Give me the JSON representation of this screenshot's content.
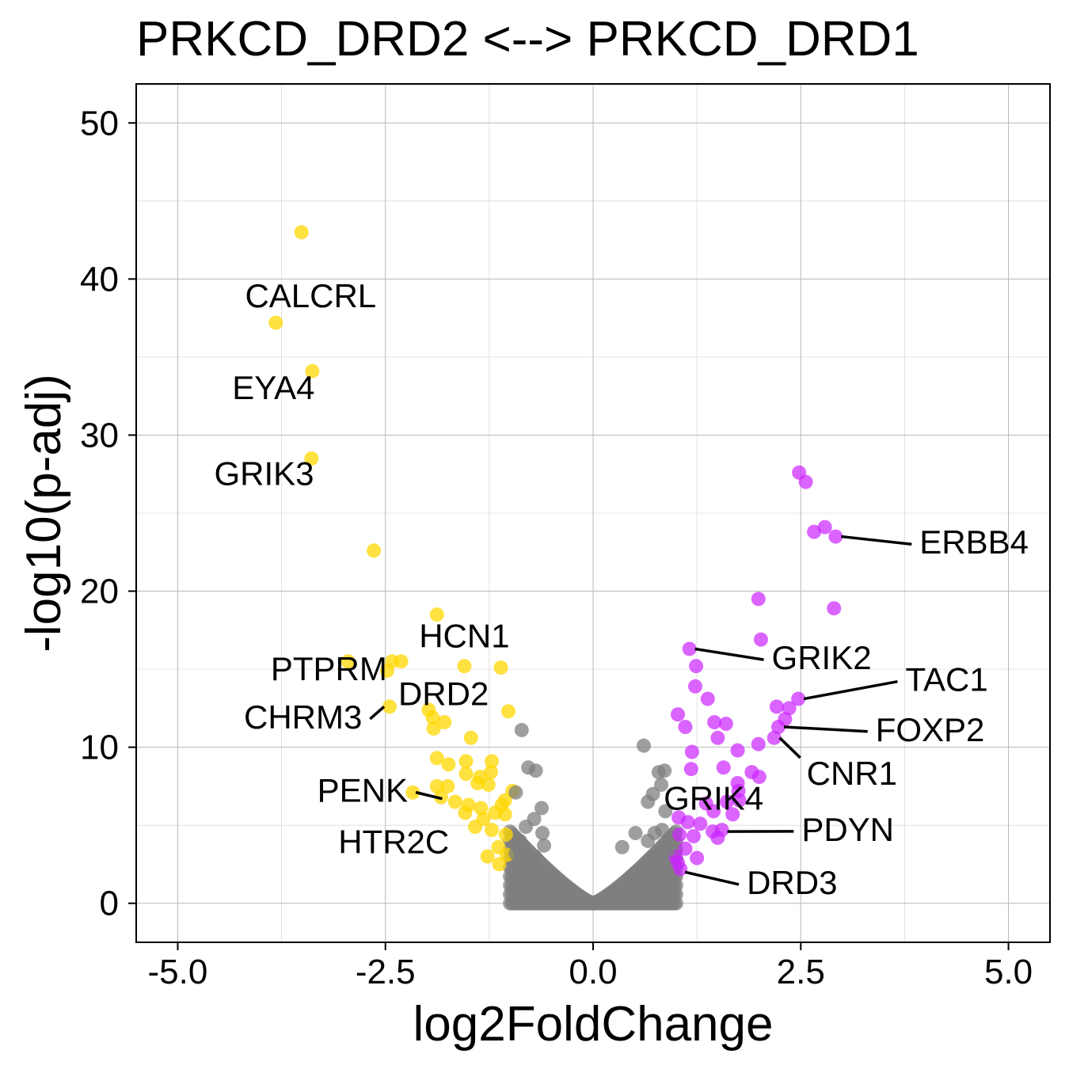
{
  "chart_data": {
    "type": "scatter",
    "title": "PRKCD_DRD2 <--> PRKCD_DRD1",
    "xlabel": "log2FoldChange",
    "ylabel": "-log10(p-adj)",
    "xlim": [
      -5.5,
      5.5
    ],
    "ylim": [
      -2.5,
      52.5
    ],
    "x_ticks": [
      -5,
      -2.5,
      0,
      2.5,
      5
    ],
    "x_tick_labels": [
      "-5.0",
      "-2.5",
      "0.0",
      "2.5",
      "5.0"
    ],
    "y_ticks": [
      0,
      10,
      20,
      30,
      40,
      50
    ],
    "y_tick_labels": [
      "0",
      "10",
      "20",
      "30",
      "40",
      "50"
    ],
    "grid": true,
    "colors": {
      "down": "#FFD700",
      "up": "#CC22FF",
      "ns": "#7F7F7F"
    },
    "series": [
      {
        "group": "down",
        "points": [
          [
            -3.51,
            43.0
          ],
          [
            -3.82,
            37.2
          ],
          [
            -3.38,
            34.1
          ],
          [
            -3.39,
            28.5
          ],
          [
            -2.64,
            22.6
          ],
          [
            -1.88,
            18.5
          ],
          [
            -2.95,
            15.5
          ],
          [
            -2.42,
            15.5
          ],
          [
            -2.31,
            15.5
          ],
          [
            -2.48,
            14.9
          ],
          [
            -1.55,
            15.2
          ],
          [
            -1.11,
            15.1
          ],
          [
            -2.45,
            12.6
          ],
          [
            -1.98,
            12.4
          ],
          [
            -1.02,
            12.3
          ],
          [
            -1.93,
            11.9
          ],
          [
            -1.79,
            11.6
          ],
          [
            -1.92,
            11.2
          ],
          [
            -1.47,
            10.6
          ],
          [
            -1.88,
            9.3
          ],
          [
            -1.74,
            8.9
          ],
          [
            -1.53,
            9.1
          ],
          [
            -1.22,
            9.1
          ],
          [
            -1.53,
            8.3
          ],
          [
            -1.23,
            8.4
          ],
          [
            -1.36,
            8.1
          ],
          [
            -2.17,
            7.1
          ],
          [
            -1.88,
            7.5
          ],
          [
            -1.75,
            7.5
          ],
          [
            -1.39,
            7.7
          ],
          [
            -1.26,
            7.6
          ],
          [
            -1.83,
            6.8
          ],
          [
            -1.66,
            6.5
          ],
          [
            -1.5,
            6.3
          ],
          [
            -1.35,
            6.1
          ],
          [
            -1.1,
            6.3
          ],
          [
            -1.54,
            5.8
          ],
          [
            -1.32,
            5.4
          ],
          [
            -1.18,
            5.8
          ],
          [
            -1.06,
            5.7
          ],
          [
            -1.42,
            4.9
          ],
          [
            -1.22,
            4.7
          ],
          [
            -1.05,
            4.4
          ],
          [
            -1.14,
            3.6
          ],
          [
            -1.27,
            3.0
          ],
          [
            -1.13,
            2.5
          ],
          [
            -1.04,
            3.1
          ],
          [
            -0.97,
            7.2
          ],
          [
            -1.06,
            6.6
          ]
        ]
      },
      {
        "group": "up",
        "points": [
          [
            2.48,
            27.6
          ],
          [
            2.56,
            27.0
          ],
          [
            2.92,
            23.5
          ],
          [
            2.66,
            23.8
          ],
          [
            2.79,
            24.1
          ],
          [
            2.9,
            18.9
          ],
          [
            1.99,
            19.5
          ],
          [
            2.02,
            16.9
          ],
          [
            1.16,
            16.3
          ],
          [
            1.24,
            15.2
          ],
          [
            1.23,
            13.9
          ],
          [
            1.38,
            13.1
          ],
          [
            2.47,
            13.1
          ],
          [
            2.36,
            12.5
          ],
          [
            2.21,
            12.6
          ],
          [
            2.31,
            11.8
          ],
          [
            1.02,
            12.1
          ],
          [
            1.11,
            11.3
          ],
          [
            1.46,
            11.6
          ],
          [
            1.6,
            11.5
          ],
          [
            2.23,
            11.3
          ],
          [
            1.5,
            10.6
          ],
          [
            2.18,
            10.6
          ],
          [
            1.99,
            10.2
          ],
          [
            1.19,
            9.7
          ],
          [
            1.74,
            9.8
          ],
          [
            1.18,
            8.6
          ],
          [
            1.57,
            8.7
          ],
          [
            1.91,
            8.4
          ],
          [
            2.0,
            8.1
          ],
          [
            1.74,
            7.7
          ],
          [
            1.75,
            7.2
          ],
          [
            1.76,
            6.6
          ],
          [
            1.61,
            6.5
          ],
          [
            1.36,
            6.4
          ],
          [
            1.45,
            5.9
          ],
          [
            1.68,
            5.7
          ],
          [
            1.03,
            5.5
          ],
          [
            1.14,
            5.2
          ],
          [
            1.29,
            5.1
          ],
          [
            1.44,
            4.6
          ],
          [
            1.5,
            4.2
          ],
          [
            1.55,
            4.7
          ],
          [
            1.04,
            4.4
          ],
          [
            1.21,
            4.3
          ],
          [
            1.11,
            3.5
          ],
          [
            1.25,
            2.9
          ],
          [
            1.05,
            2.2
          ],
          [
            1.02,
            2.6
          ],
          [
            0.99,
            3.0
          ]
        ]
      },
      {
        "group": "ns",
        "points": [
          [
            -0.86,
            11.1
          ],
          [
            -0.78,
            8.7
          ],
          [
            -0.69,
            8.5
          ],
          [
            -0.93,
            7.1
          ],
          [
            -0.62,
            6.1
          ],
          [
            -0.71,
            5.4
          ],
          [
            -0.81,
            4.9
          ],
          [
            -0.88,
            4.0
          ],
          [
            -0.61,
            4.5
          ],
          [
            -0.59,
            3.7
          ],
          [
            -0.93,
            3.2
          ],
          [
            -0.7,
            3.0
          ],
          [
            0.61,
            10.1
          ],
          [
            0.79,
            8.4
          ],
          [
            0.86,
            8.5
          ],
          [
            0.82,
            7.6
          ],
          [
            0.72,
            7.0
          ],
          [
            0.66,
            6.5
          ],
          [
            0.87,
            5.9
          ],
          [
            0.51,
            4.5
          ],
          [
            0.74,
            4.5
          ],
          [
            0.66,
            4.0
          ],
          [
            0.35,
            3.6
          ],
          [
            0.83,
            4.7
          ],
          [
            0.9,
            3.4
          ]
        ]
      }
    ],
    "annotations": [
      {
        "label": "CALCRL",
        "x": -3.82,
        "y": 37.2
      },
      {
        "label": "EYA4",
        "x": -3.38,
        "y": 34.1
      },
      {
        "label": "GRIK3",
        "x": -3.39,
        "y": 28.5
      },
      {
        "label": "HCN1",
        "x": -1.55,
        "y": 15.2
      },
      {
        "label": "PTPRM",
        "x": -2.48,
        "y": 14.9
      },
      {
        "label": "DRD2",
        "x": -1.93,
        "y": 11.9
      },
      {
        "label": "CHRM3",
        "x": -2.45,
        "y": 12.6
      },
      {
        "label": "PENK",
        "x": -1.75,
        "y": 6.7
      },
      {
        "label": "HTR2C",
        "x": -1.27,
        "y": 3.0
      },
      {
        "label": "GRIK4",
        "x": 1.04,
        "y": 5.2
      },
      {
        "label": "ERBB4",
        "x": 2.92,
        "y": 23.5
      },
      {
        "label": "GRIK2",
        "x": 1.16,
        "y": 16.3
      },
      {
        "label": "TAC1",
        "x": 2.47,
        "y": 13.1
      },
      {
        "label": "FOXP2",
        "x": 2.23,
        "y": 11.3
      },
      {
        "label": "CNR1",
        "x": 2.18,
        "y": 10.6
      },
      {
        "label": "PDYN",
        "x": 1.55,
        "y": 4.6
      },
      {
        "label": "DRD3",
        "x": 1.04,
        "y": 2.0
      }
    ]
  }
}
